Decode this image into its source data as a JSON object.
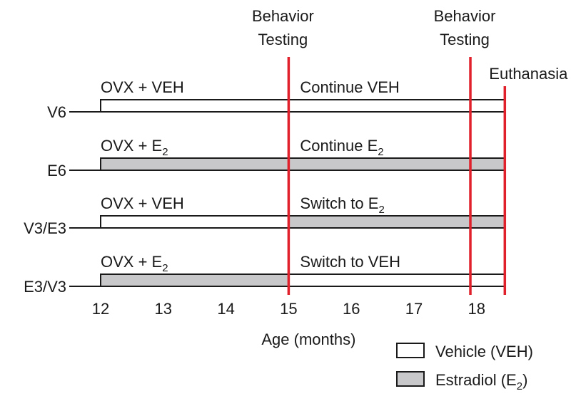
{
  "colors": {
    "vehicle_fill": "#ffffff",
    "estradiol_fill": "#c8c8ca",
    "event_line": "#e0202a",
    "line": "#1a1a1a"
  },
  "x_axis": {
    "label": "Age (months)",
    "ticks": [
      12,
      13,
      14,
      15,
      16,
      17,
      18
    ]
  },
  "events": [
    {
      "id": "behavior-1",
      "label_lines": [
        "Behavior",
        "Testing"
      ],
      "month": 15
    },
    {
      "id": "behavior-2",
      "label_lines": [
        "Behavior",
        "Testing"
      ],
      "month": 17.9
    },
    {
      "id": "euthanasia",
      "label_lines": [
        "Euthanasia"
      ],
      "month": 18.45
    }
  ],
  "groups": [
    {
      "name": "V6",
      "phase1": {
        "label": "OVX + VEH",
        "sub": "",
        "treatment": "vehicle"
      },
      "phase2": {
        "label": "Continue VEH",
        "sub": "",
        "treatment": "vehicle"
      }
    },
    {
      "name": "E6",
      "phase1": {
        "label": "OVX + E",
        "sub": "2",
        "treatment": "estradiol"
      },
      "phase2": {
        "label": "Continue E",
        "sub": "2",
        "treatment": "estradiol"
      }
    },
    {
      "name": "V3/E3",
      "phase1": {
        "label": "OVX + VEH",
        "sub": "",
        "treatment": "vehicle"
      },
      "phase2": {
        "label": "Switch to E",
        "sub": "2",
        "treatment": "estradiol"
      }
    },
    {
      "name": "E3/V3",
      "phase1": {
        "label": "OVX + E",
        "sub": "2",
        "treatment": "estradiol"
      },
      "phase2": {
        "label": "Switch to VEH",
        "sub": "",
        "treatment": "vehicle"
      }
    }
  ],
  "timeline": {
    "start_month": 12,
    "switch_month": 15,
    "end_month": 18.45
  },
  "legend": [
    {
      "label": "Vehicle (VEH)",
      "sub": "",
      "label_after": "",
      "treatment": "vehicle"
    },
    {
      "label": "Estradiol (E",
      "sub": "2",
      "label_after": ")",
      "treatment": "estradiol"
    }
  ]
}
